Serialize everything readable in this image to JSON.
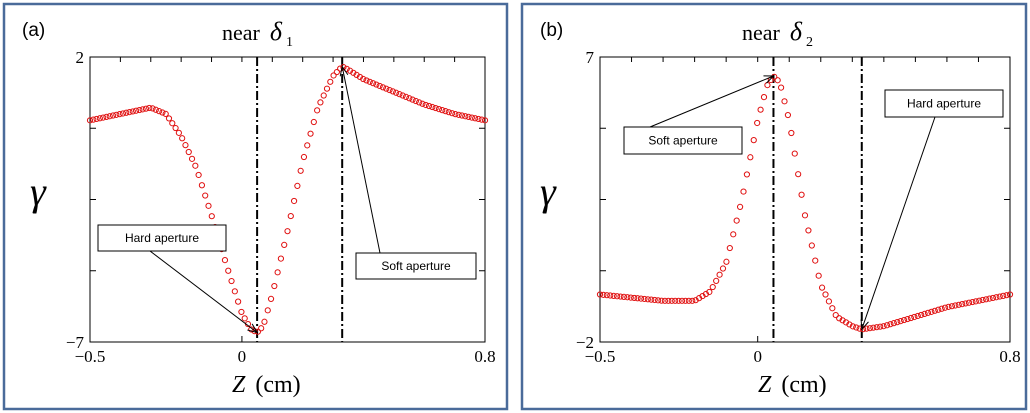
{
  "chart_data": [
    {
      "type": "scatter",
      "panel_label": "(a)",
      "title": {
        "text": "near",
        "symbol": "δ",
        "subscript": "1"
      },
      "xlabel": {
        "var": "Z",
        "unit": "(cm)"
      },
      "ylabel": "γ",
      "xlim": [
        -0.5,
        0.8
      ],
      "ylim": [
        -7,
        2
      ],
      "xticks": [
        {
          "value": -0.5,
          "label": "−0.5"
        },
        {
          "value": 0,
          "label": "0"
        },
        {
          "value": 0.8,
          "label": "0.8"
        }
      ],
      "yticks": [
        {
          "value": -7,
          "label": "−7"
        },
        {
          "value": 2,
          "label": "2"
        }
      ],
      "vlines": [
        0.05,
        0.33
      ],
      "marker_color": "#e01010",
      "series": [
        {
          "x": [
            -0.5,
            -0.45,
            -0.4,
            -0.35,
            -0.3,
            -0.25,
            -0.2,
            -0.15,
            -0.1,
            -0.05,
            0,
            0.03,
            0.05,
            0.07,
            0.1,
            0.15,
            0.2,
            0.25,
            0.3,
            0.33,
            0.35,
            0.4,
            0.5,
            0.6,
            0.7,
            0.8
          ],
          "y": [
            0,
            0.1,
            0.2,
            0.3,
            0.4,
            0.2,
            -0.5,
            -1.5,
            -3,
            -4.6,
            -6.1,
            -6.6,
            -6.7,
            -6.5,
            -5.5,
            -3.5,
            -1.3,
            0.4,
            1.4,
            1.7,
            1.6,
            1.3,
            0.9,
            0.5,
            0.2,
            0
          ]
        }
      ],
      "annotations": [
        {
          "text": "Hard aperture",
          "target": [
            0.05,
            -6.7
          ]
        },
        {
          "text": "Soft aperture",
          "target": [
            0.33,
            1.7
          ]
        }
      ]
    },
    {
      "type": "scatter",
      "panel_label": "(b)",
      "title": {
        "text": "near",
        "symbol": "δ",
        "subscript": "2"
      },
      "xlabel": {
        "var": "Z",
        "unit": "(cm)"
      },
      "ylabel": "γ",
      "xlim": [
        -0.5,
        0.8
      ],
      "ylim": [
        -2,
        7
      ],
      "xticks": [
        {
          "value": -0.5,
          "label": "−0.5"
        },
        {
          "value": 0,
          "label": "0"
        },
        {
          "value": 0.8,
          "label": "0.8"
        }
      ],
      "yticks": [
        {
          "value": -2,
          "label": "−2"
        },
        {
          "value": 7,
          "label": "7"
        }
      ],
      "vlines": [
        0.05,
        0.33
      ],
      "marker_color": "#e01010",
      "series": [
        {
          "x": [
            -0.5,
            -0.4,
            -0.3,
            -0.2,
            -0.15,
            -0.1,
            -0.05,
            0,
            0.03,
            0.05,
            0.07,
            0.1,
            0.15,
            0.2,
            0.25,
            0.3,
            0.33,
            0.4,
            0.5,
            0.6,
            0.7,
            0.8
          ],
          "y": [
            -0.5,
            -0.6,
            -0.7,
            -0.7,
            -0.4,
            0.5,
            2.5,
            5,
            6.1,
            6.4,
            6.2,
            5,
            2,
            -0.2,
            -1.2,
            -1.5,
            -1.6,
            -1.5,
            -1.2,
            -0.9,
            -0.7,
            -0.5
          ]
        }
      ],
      "annotations": [
        {
          "text": "Soft aperture",
          "target": [
            0.05,
            6.4
          ]
        },
        {
          "text": "Hard aperture",
          "target": [
            0.33,
            -1.6
          ]
        }
      ]
    }
  ]
}
